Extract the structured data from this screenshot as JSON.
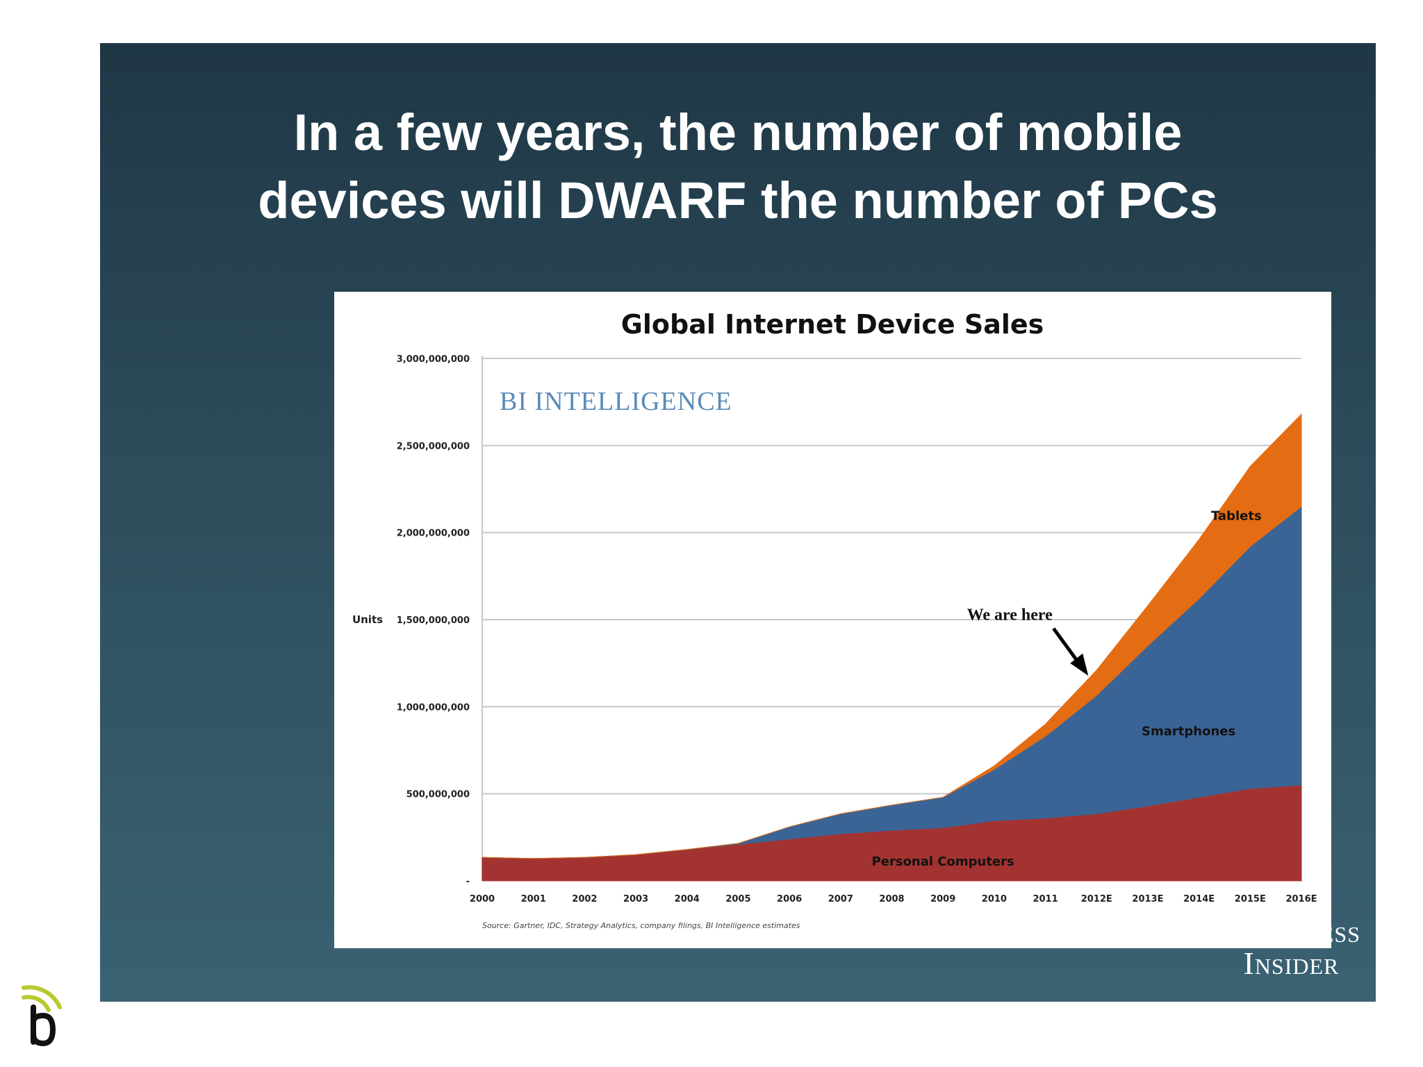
{
  "slide": {
    "title_line1": "In a few years, the number of mobile",
    "title_line2": "devices will DWARF the number of PCs",
    "brand_line1": "Business",
    "brand_line2": "Insider"
  },
  "chart_data": {
    "type": "area",
    "stacked": true,
    "title": "Global Internet Device Sales",
    "watermark": "BI INTELLIGENCE",
    "ylabel": "Units",
    "xlabel": "",
    "ylim": [
      0,
      3000000000
    ],
    "yticks": [
      0,
      500000000,
      1000000000,
      1500000000,
      2000000000,
      2500000000,
      3000000000
    ],
    "ytick_labels": [
      "-",
      "500,000,000",
      "1,000,000,000",
      "1,500,000,000",
      "2,000,000,000",
      "2,500,000,000",
      "3,000,000,000"
    ],
    "categories": [
      "2000",
      "2001",
      "2002",
      "2003",
      "2004",
      "2005",
      "2006",
      "2007",
      "2008",
      "2009",
      "2010",
      "2011",
      "2012E",
      "2013E",
      "2014E",
      "2015E",
      "2016E"
    ],
    "series": [
      {
        "name": "Personal Computers",
        "color": "#a33330",
        "values": [
          135000000,
          128000000,
          135000000,
          150000000,
          180000000,
          210000000,
          240000000,
          270000000,
          290000000,
          305000000,
          345000000,
          360000000,
          385000000,
          430000000,
          480000000,
          530000000,
          550000000
        ]
      },
      {
        "name": "Smartphones",
        "color": "#3a6496",
        "values": [
          0,
          0,
          0,
          0,
          0,
          5000000,
          70000000,
          115000000,
          145000000,
          175000000,
          295000000,
          470000000,
          680000000,
          920000000,
          1140000000,
          1390000000,
          1600000000
        ]
      },
      {
        "name": "Tablets",
        "color": "#e46c12",
        "values": [
          0,
          0,
          0,
          0,
          0,
          0,
          0,
          0,
          0,
          0,
          20000000,
          70000000,
          145000000,
          230000000,
          340000000,
          460000000,
          530000000
        ]
      }
    ],
    "annotations": [
      {
        "text": "We are here",
        "x": "2012E"
      }
    ],
    "source": "Source: Gartner, IDC, Strategy Analytics, company filings, BI Intelligence estimates",
    "grid": true,
    "legend": "none"
  }
}
